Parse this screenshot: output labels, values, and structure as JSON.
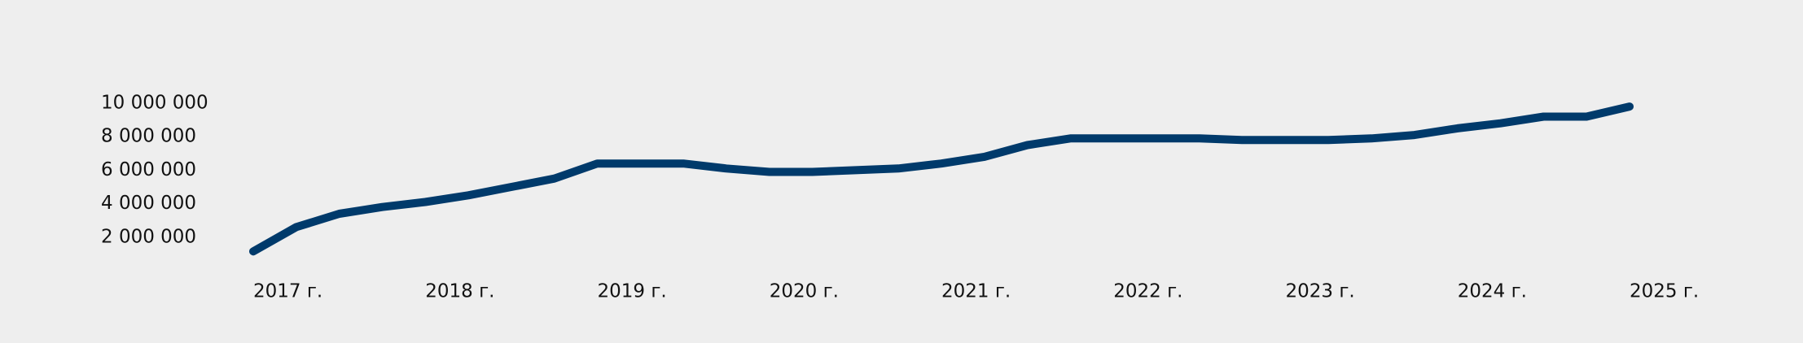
{
  "chart_data": {
    "type": "line",
    "categories": [
      "2017 г.",
      null,
      null,
      null,
      "2018 г.",
      null,
      null,
      null,
      "2019 г.",
      null,
      null,
      null,
      "2020 г.",
      null,
      null,
      null,
      "2021 г.",
      null,
      null,
      null,
      "2022 г.",
      null,
      null,
      null,
      "2023 г.",
      null,
      null,
      null,
      "2024 г.",
      null,
      null,
      null,
      "2025 г."
    ],
    "series": [
      {
        "color": "#003a6b",
        "values": [
          1150000,
          2600000,
          3400000,
          3800000,
          4100000,
          4500000,
          5000000,
          5500000,
          6400000,
          6400000,
          6400000,
          6100000,
          5900000,
          5900000,
          6000000,
          6100000,
          6400000,
          6800000,
          7500000,
          7900000,
          7900000,
          7900000,
          7900000,
          7800000,
          7800000,
          7800000,
          7900000,
          8100000,
          8500000,
          8800000,
          9200000,
          9200000,
          9800000
        ]
      }
    ],
    "ylim": [
      0,
      10000000
    ],
    "yticks": [
      {
        "value": 2000000,
        "label": "2 000 000"
      },
      {
        "value": 4000000,
        "label": "4 000 000"
      },
      {
        "value": 6000000,
        "label": "6 000 000"
      },
      {
        "value": 8000000,
        "label": "8 000 000"
      },
      {
        "value": 10000000,
        "label": "10 000 000"
      }
    ]
  }
}
